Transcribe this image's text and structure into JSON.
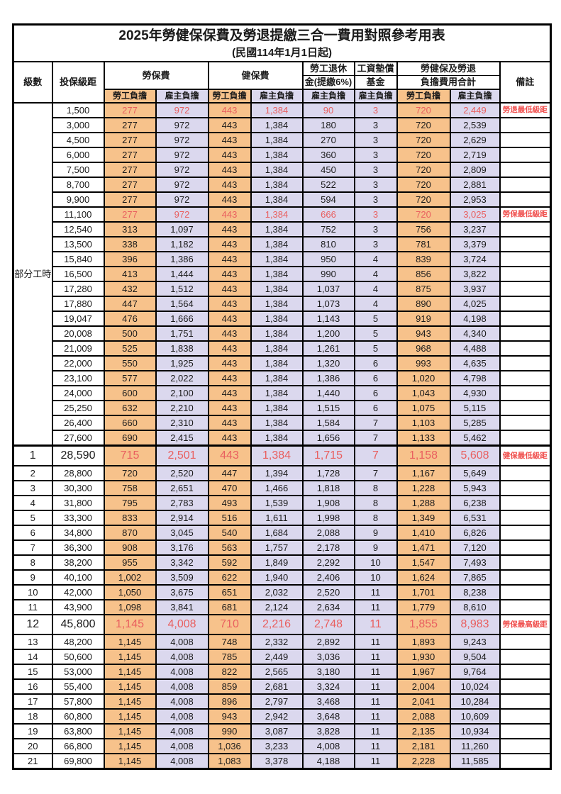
{
  "title": "2025年勞健保保費及勞退提繳三合一費用對照參考用表",
  "subtitle": "(民國114年1月1日起)",
  "columns": {
    "level": "級數",
    "bracket": "投保級距",
    "labor_insurance": "勞保費",
    "health_insurance": "健保費",
    "pension_line1": "勞工退休",
    "pension_line2": "金(提繳6%)",
    "wage_fund_line1": "工資墊償",
    "wage_fund_line2": "基金",
    "total_line1": "勞健保及勞退",
    "total_line2": "負擔費用合計",
    "remark": "備註",
    "employee_share": "勞工負擔",
    "employer_share": "雇主負擔"
  },
  "part_time_label": "部分工時",
  "part_time_rowspan": 23,
  "colors": {
    "orange": "#f7c28b",
    "purple": "#dbd8ee",
    "red": "#e95f5f",
    "remark_red": "#f0504e",
    "border": "#000000"
  },
  "rows": [
    {
      "level": "",
      "bracket": "1,500",
      "values": [
        "277",
        "972",
        "443",
        "1,384",
        "90",
        "3",
        "720",
        "2,449"
      ],
      "remark": "勞退最低級距",
      "red": true,
      "large": false
    },
    {
      "level": "",
      "bracket": "3,000",
      "values": [
        "277",
        "972",
        "443",
        "1,384",
        "180",
        "3",
        "720",
        "2,539"
      ],
      "remark": "",
      "red": false,
      "large": false
    },
    {
      "level": "",
      "bracket": "4,500",
      "values": [
        "277",
        "972",
        "443",
        "1,384",
        "270",
        "3",
        "720",
        "2,629"
      ],
      "remark": "",
      "red": false,
      "large": false
    },
    {
      "level": "",
      "bracket": "6,000",
      "values": [
        "277",
        "972",
        "443",
        "1,384",
        "360",
        "3",
        "720",
        "2,719"
      ],
      "remark": "",
      "red": false,
      "large": false
    },
    {
      "level": "",
      "bracket": "7,500",
      "values": [
        "277",
        "972",
        "443",
        "1,384",
        "450",
        "3",
        "720",
        "2,809"
      ],
      "remark": "",
      "red": false,
      "large": false
    },
    {
      "level": "",
      "bracket": "8,700",
      "values": [
        "277",
        "972",
        "443",
        "1,384",
        "522",
        "3",
        "720",
        "2,881"
      ],
      "remark": "",
      "red": false,
      "large": false
    },
    {
      "level": "",
      "bracket": "9,900",
      "values": [
        "277",
        "972",
        "443",
        "1,384",
        "594",
        "3",
        "720",
        "2,953"
      ],
      "remark": "",
      "red": false,
      "large": false
    },
    {
      "level": "",
      "bracket": "11,100",
      "values": [
        "277",
        "972",
        "443",
        "1,384",
        "666",
        "3",
        "720",
        "3,025"
      ],
      "remark": "勞保最低級距",
      "red": true,
      "large": false
    },
    {
      "level": "",
      "bracket": "12,540",
      "values": [
        "313",
        "1,097",
        "443",
        "1,384",
        "752",
        "3",
        "756",
        "3,237"
      ],
      "remark": "",
      "red": false,
      "large": false
    },
    {
      "level": "",
      "bracket": "13,500",
      "values": [
        "338",
        "1,182",
        "443",
        "1,384",
        "810",
        "3",
        "781",
        "3,379"
      ],
      "remark": "",
      "red": false,
      "large": false
    },
    {
      "level": "",
      "bracket": "15,840",
      "values": [
        "396",
        "1,386",
        "443",
        "1,384",
        "950",
        "4",
        "839",
        "3,724"
      ],
      "remark": "",
      "red": false,
      "large": false
    },
    {
      "level": "",
      "bracket": "16,500",
      "values": [
        "413",
        "1,444",
        "443",
        "1,384",
        "990",
        "4",
        "856",
        "3,822"
      ],
      "remark": "",
      "red": false,
      "large": false
    },
    {
      "level": "",
      "bracket": "17,280",
      "values": [
        "432",
        "1,512",
        "443",
        "1,384",
        "1,037",
        "4",
        "875",
        "3,937"
      ],
      "remark": "",
      "red": false,
      "large": false
    },
    {
      "level": "",
      "bracket": "17,880",
      "values": [
        "447",
        "1,564",
        "443",
        "1,384",
        "1,073",
        "4",
        "890",
        "4,025"
      ],
      "remark": "",
      "red": false,
      "large": false
    },
    {
      "level": "",
      "bracket": "19,047",
      "values": [
        "476",
        "1,666",
        "443",
        "1,384",
        "1,143",
        "5",
        "919",
        "4,198"
      ],
      "remark": "",
      "red": false,
      "large": false
    },
    {
      "level": "",
      "bracket": "20,008",
      "values": [
        "500",
        "1,751",
        "443",
        "1,384",
        "1,200",
        "5",
        "943",
        "4,340"
      ],
      "remark": "",
      "red": false,
      "large": false
    },
    {
      "level": "",
      "bracket": "21,009",
      "values": [
        "525",
        "1,838",
        "443",
        "1,384",
        "1,261",
        "5",
        "968",
        "4,488"
      ],
      "remark": "",
      "red": false,
      "large": false
    },
    {
      "level": "",
      "bracket": "22,000",
      "values": [
        "550",
        "1,925",
        "443",
        "1,384",
        "1,320",
        "6",
        "993",
        "4,635"
      ],
      "remark": "",
      "red": false,
      "large": false
    },
    {
      "level": "",
      "bracket": "23,100",
      "values": [
        "577",
        "2,022",
        "443",
        "1,384",
        "1,386",
        "6",
        "1,020",
        "4,798"
      ],
      "remark": "",
      "red": false,
      "large": false
    },
    {
      "level": "",
      "bracket": "24,000",
      "values": [
        "600",
        "2,100",
        "443",
        "1,384",
        "1,440",
        "6",
        "1,043",
        "4,930"
      ],
      "remark": "",
      "red": false,
      "large": false
    },
    {
      "level": "",
      "bracket": "25,250",
      "values": [
        "632",
        "2,210",
        "443",
        "1,384",
        "1,515",
        "6",
        "1,075",
        "5,115"
      ],
      "remark": "",
      "red": false,
      "large": false
    },
    {
      "level": "",
      "bracket": "26,400",
      "values": [
        "660",
        "2,310",
        "443",
        "1,384",
        "1,584",
        "7",
        "1,103",
        "5,285"
      ],
      "remark": "",
      "red": false,
      "large": false
    },
    {
      "level": "",
      "bracket": "27,600",
      "values": [
        "690",
        "2,415",
        "443",
        "1,384",
        "1,656",
        "7",
        "1,133",
        "5,462"
      ],
      "remark": "",
      "red": false,
      "large": false
    },
    {
      "level": "1",
      "bracket": "28,590",
      "values": [
        "715",
        "2,501",
        "443",
        "1,384",
        "1,715",
        "7",
        "1,158",
        "5,608"
      ],
      "remark": "健保最低級距",
      "red": true,
      "large": true
    },
    {
      "level": "2",
      "bracket": "28,800",
      "values": [
        "720",
        "2,520",
        "447",
        "1,394",
        "1,728",
        "7",
        "1,167",
        "5,649"
      ],
      "remark": "",
      "red": false,
      "large": false
    },
    {
      "level": "3",
      "bracket": "30,300",
      "values": [
        "758",
        "2,651",
        "470",
        "1,466",
        "1,818",
        "8",
        "1,228",
        "5,943"
      ],
      "remark": "",
      "red": false,
      "large": false
    },
    {
      "level": "4",
      "bracket": "31,800",
      "values": [
        "795",
        "2,783",
        "493",
        "1,539",
        "1,908",
        "8",
        "1,288",
        "6,238"
      ],
      "remark": "",
      "red": false,
      "large": false
    },
    {
      "level": "5",
      "bracket": "33,300",
      "values": [
        "833",
        "2,914",
        "516",
        "1,611",
        "1,998",
        "8",
        "1,349",
        "6,531"
      ],
      "remark": "",
      "red": false,
      "large": false
    },
    {
      "level": "6",
      "bracket": "34,800",
      "values": [
        "870",
        "3,045",
        "540",
        "1,684",
        "2,088",
        "9",
        "1,410",
        "6,826"
      ],
      "remark": "",
      "red": false,
      "large": false
    },
    {
      "level": "7",
      "bracket": "36,300",
      "values": [
        "908",
        "3,176",
        "563",
        "1,757",
        "2,178",
        "9",
        "1,471",
        "7,120"
      ],
      "remark": "",
      "red": false,
      "large": false
    },
    {
      "level": "8",
      "bracket": "38,200",
      "values": [
        "955",
        "3,342",
        "592",
        "1,849",
        "2,292",
        "10",
        "1,547",
        "7,493"
      ],
      "remark": "",
      "red": false,
      "large": false
    },
    {
      "level": "9",
      "bracket": "40,100",
      "values": [
        "1,002",
        "3,509",
        "622",
        "1,940",
        "2,406",
        "10",
        "1,624",
        "7,865"
      ],
      "remark": "",
      "red": false,
      "large": false
    },
    {
      "level": "10",
      "bracket": "42,000",
      "values": [
        "1,050",
        "3,675",
        "651",
        "2,032",
        "2,520",
        "11",
        "1,701",
        "8,238"
      ],
      "remark": "",
      "red": false,
      "large": false
    },
    {
      "level": "11",
      "bracket": "43,900",
      "values": [
        "1,098",
        "3,841",
        "681",
        "2,124",
        "2,634",
        "11",
        "1,779",
        "8,610"
      ],
      "remark": "",
      "red": false,
      "large": false
    },
    {
      "level": "12",
      "bracket": "45,800",
      "values": [
        "1,145",
        "4,008",
        "710",
        "2,216",
        "2,748",
        "11",
        "1,855",
        "8,983"
      ],
      "remark": "勞保最高級距",
      "red": true,
      "large": true
    },
    {
      "level": "13",
      "bracket": "48,200",
      "values": [
        "1,145",
        "4,008",
        "748",
        "2,332",
        "2,892",
        "11",
        "1,893",
        "9,243"
      ],
      "remark": "",
      "red": false,
      "large": false
    },
    {
      "level": "14",
      "bracket": "50,600",
      "values": [
        "1,145",
        "4,008",
        "785",
        "2,449",
        "3,036",
        "11",
        "1,930",
        "9,504"
      ],
      "remark": "",
      "red": false,
      "large": false
    },
    {
      "level": "15",
      "bracket": "53,000",
      "values": [
        "1,145",
        "4,008",
        "822",
        "2,565",
        "3,180",
        "11",
        "1,967",
        "9,764"
      ],
      "remark": "",
      "red": false,
      "large": false
    },
    {
      "level": "16",
      "bracket": "55,400",
      "values": [
        "1,145",
        "4,008",
        "859",
        "2,681",
        "3,324",
        "11",
        "2,004",
        "10,024"
      ],
      "remark": "",
      "red": false,
      "large": false
    },
    {
      "level": "17",
      "bracket": "57,800",
      "values": [
        "1,145",
        "4,008",
        "896",
        "2,797",
        "3,468",
        "11",
        "2,041",
        "10,284"
      ],
      "remark": "",
      "red": false,
      "large": false
    },
    {
      "level": "18",
      "bracket": "60,800",
      "values": [
        "1,145",
        "4,008",
        "943",
        "2,942",
        "3,648",
        "11",
        "2,088",
        "10,609"
      ],
      "remark": "",
      "red": false,
      "large": false
    },
    {
      "level": "19",
      "bracket": "63,800",
      "values": [
        "1,145",
        "4,008",
        "990",
        "3,087",
        "3,828",
        "11",
        "2,135",
        "10,934"
      ],
      "remark": "",
      "red": false,
      "large": false
    },
    {
      "level": "20",
      "bracket": "66,800",
      "values": [
        "1,145",
        "4,008",
        "1,036",
        "3,233",
        "4,008",
        "11",
        "2,181",
        "11,260"
      ],
      "remark": "",
      "red": false,
      "large": false
    },
    {
      "level": "21",
      "bracket": "69,800",
      "values": [
        "1,145",
        "4,008",
        "1,083",
        "3,378",
        "4,188",
        "11",
        "2,228",
        "11,585"
      ],
      "remark": "",
      "red": false,
      "large": false
    }
  ]
}
